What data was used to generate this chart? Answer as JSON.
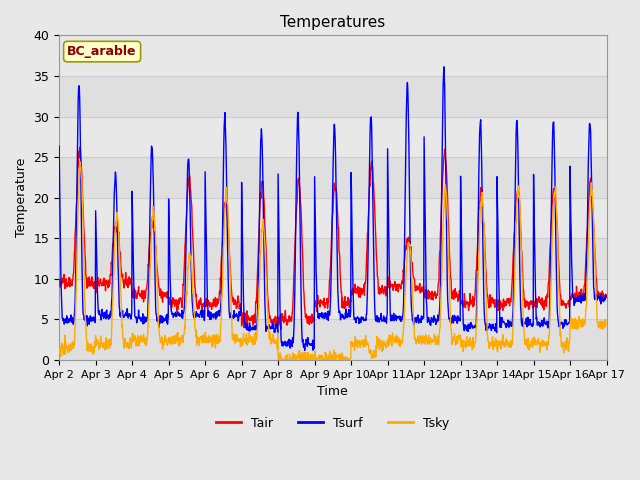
{
  "title": "Temperatures",
  "xlabel": "Time",
  "ylabel": "Temperature",
  "ylim": [
    0,
    40
  ],
  "annotation": "BC_arable",
  "line_colors": {
    "Tair": "#ff0000",
    "Tsurf": "#0000ff",
    "Tsky": "#ffaa00"
  },
  "x_tick_labels": [
    "Apr 2",
    "Apr 3",
    "Apr 4",
    "Apr 5",
    "Apr 6",
    "Apr 7",
    "Apr 8",
    "Apr 9",
    "Apr 10",
    "Apr 11",
    "Apr 12",
    "Apr 13",
    "Apr 14",
    "Apr 15",
    "Apr 16",
    "Apr 17"
  ],
  "background_color": "#e8e8e8",
  "plot_bg_color": "#e8e8e8",
  "grid_color": "#d0d0d0",
  "n_days": 15,
  "pts_per_day": 96,
  "day_peaks_Tsurf": [
    34.0,
    23.0,
    26.5,
    25.0,
    30.0,
    28.5,
    30.5,
    29.0,
    30.0,
    34.0,
    35.5,
    29.5,
    29.5,
    29.5,
    29.5
  ],
  "day_mins_Tsurf": [
    5.0,
    5.5,
    5.0,
    5.5,
    5.5,
    4.0,
    2.0,
    5.5,
    5.0,
    5.0,
    5.0,
    4.0,
    4.5,
    4.5,
    7.5
  ],
  "day_peaks_Tair": [
    25.5,
    17.0,
    17.0,
    22.5,
    19.5,
    22.0,
    22.0,
    21.5,
    24.0,
    15.0,
    25.5,
    20.5,
    21.0,
    21.0,
    21.5
  ],
  "day_mins_Tair": [
    9.5,
    9.5,
    8.0,
    7.0,
    7.0,
    5.0,
    5.0,
    7.0,
    8.5,
    9.0,
    8.0,
    7.0,
    7.0,
    7.0,
    8.0
  ],
  "day_peaks_Tsky": [
    24.0,
    18.0,
    18.5,
    13.0,
    20.5,
    17.0,
    0.5,
    0.5,
    0.5,
    15.0,
    21.0,
    20.5,
    21.0,
    21.0,
    21.0
  ],
  "day_mins_Tsky": [
    1.5,
    2.0,
    2.5,
    2.5,
    2.5,
    2.5,
    0.1,
    0.1,
    2.0,
    2.5,
    2.5,
    2.0,
    2.0,
    2.0,
    4.5
  ]
}
